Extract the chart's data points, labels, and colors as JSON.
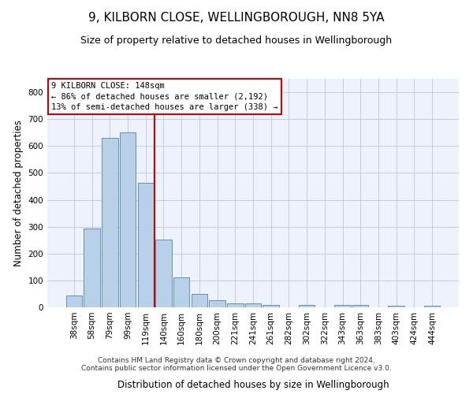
{
  "title": "9, KILBORN CLOSE, WELLINGBOROUGH, NN8 5YA",
  "subtitle": "Size of property relative to detached houses in Wellingborough",
  "xlabel": "Distribution of detached houses by size in Wellingborough",
  "ylabel": "Number of detached properties",
  "categories": [
    "38sqm",
    "58sqm",
    "79sqm",
    "99sqm",
    "119sqm",
    "140sqm",
    "160sqm",
    "180sqm",
    "200sqm",
    "221sqm",
    "241sqm",
    "261sqm",
    "282sqm",
    "302sqm",
    "322sqm",
    "343sqm",
    "363sqm",
    "383sqm",
    "403sqm",
    "424sqm",
    "444sqm"
  ],
  "values": [
    45,
    292,
    631,
    651,
    462,
    251,
    110,
    50,
    27,
    14,
    14,
    8,
    0,
    8,
    0,
    8,
    8,
    0,
    5,
    0,
    5
  ],
  "bar_color": "#b8d0e8",
  "bar_edge_color": "#6090b8",
  "bar_edge_width": 0.7,
  "grid_color": "#c0cce0",
  "background_color": "#ffffff",
  "plot_bg_color": "#eef2fa",
  "vline_color": "#cc0000",
  "vline_x_index": 4.5,
  "annotation_box_text": "9 KILBORN CLOSE: 148sqm\n← 86% of detached houses are smaller (2,192)\n13% of semi-detached houses are larger (338) →",
  "ylim": [
    0,
    850
  ],
  "yticks": [
    0,
    100,
    200,
    300,
    400,
    500,
    600,
    700,
    800
  ],
  "footer_line1": "Contains HM Land Registry data © Crown copyright and database right 2024.",
  "footer_line2": "Contains public sector information licensed under the Open Government Licence v3.0.",
  "title_fontsize": 11,
  "subtitle_fontsize": 9,
  "xlabel_fontsize": 8.5,
  "ylabel_fontsize": 8.5,
  "tick_fontsize": 7.5,
  "annotation_fontsize": 7.5,
  "footer_fontsize": 6.5
}
